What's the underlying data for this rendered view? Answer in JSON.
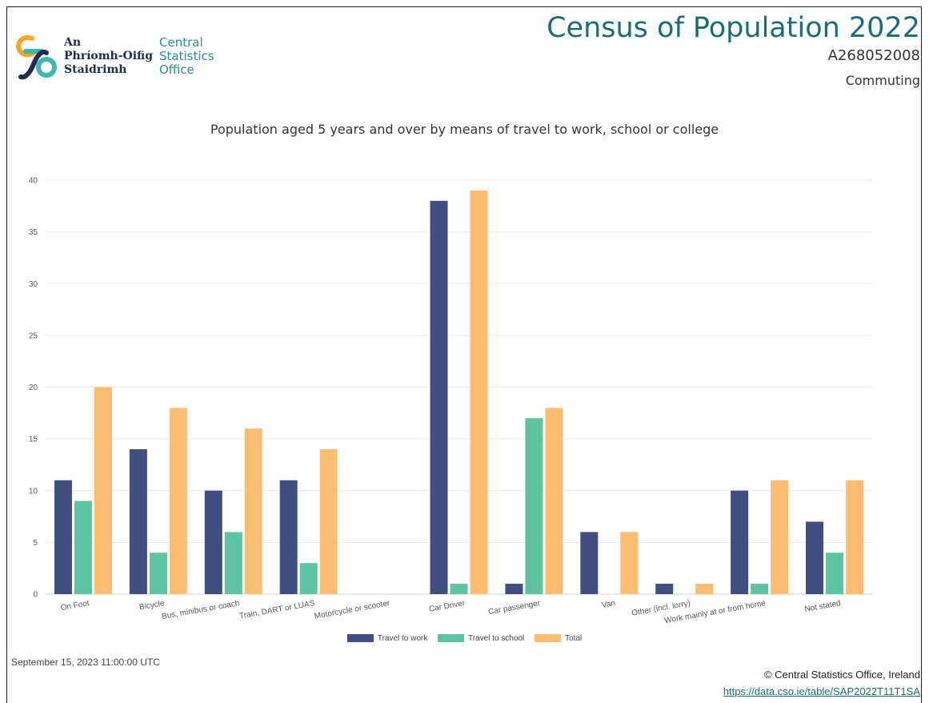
{
  "header": {
    "logo_ga_lines": [
      "An",
      "Phríomh-Oifig",
      "Staidrimh"
    ],
    "logo_en_lines": [
      "Central",
      "Statistics",
      "Office"
    ],
    "title": "Census of Population 2022",
    "table_code": "A268052008",
    "theme": "Commuting"
  },
  "colors": {
    "travel_to_work": "#3f4f80",
    "travel_to_school": "#5dc3a3",
    "total": "#fbbd72",
    "brand_teal": "#1b6d70",
    "logo_orange": "#f5a623",
    "logo_teal": "#3fb7b0",
    "logo_navy": "#1f2d4f"
  },
  "chart_data": {
    "type": "bar",
    "title": "Population aged 5 years and over by means of travel to work, school or college",
    "categories": [
      "On Foot",
      "Bicycle",
      "Bus, minibus or coach",
      "Train, DART or LUAS",
      "Motorcycle or scooter",
      "Car Driver",
      "Car passenger",
      "Van",
      "Other (incl. lorry)",
      "Work mainly at or from home",
      "Not stated"
    ],
    "series": [
      {
        "name": "Travel to work",
        "values": [
          11,
          14,
          10,
          11,
          0,
          38,
          1,
          6,
          1,
          10,
          7
        ]
      },
      {
        "name": "Travel to school",
        "values": [
          9,
          4,
          6,
          3,
          0,
          1,
          17,
          0,
          0,
          1,
          4
        ]
      },
      {
        "name": "Total",
        "values": [
          20,
          18,
          16,
          14,
          0,
          39,
          18,
          6,
          1,
          11,
          11
        ]
      }
    ],
    "ylim": [
      0,
      40
    ],
    "yticks": [
      0,
      5,
      10,
      15,
      20,
      25,
      30,
      35,
      40
    ],
    "grid": true,
    "legend": "bottom"
  },
  "footer": {
    "timestamp": "September 15, 2023 11:00:00 UTC",
    "copyright": "© Central Statistics Office, Ireland",
    "source_link": "https://data.cso.ie/table/SAP2022T11T1SA"
  }
}
